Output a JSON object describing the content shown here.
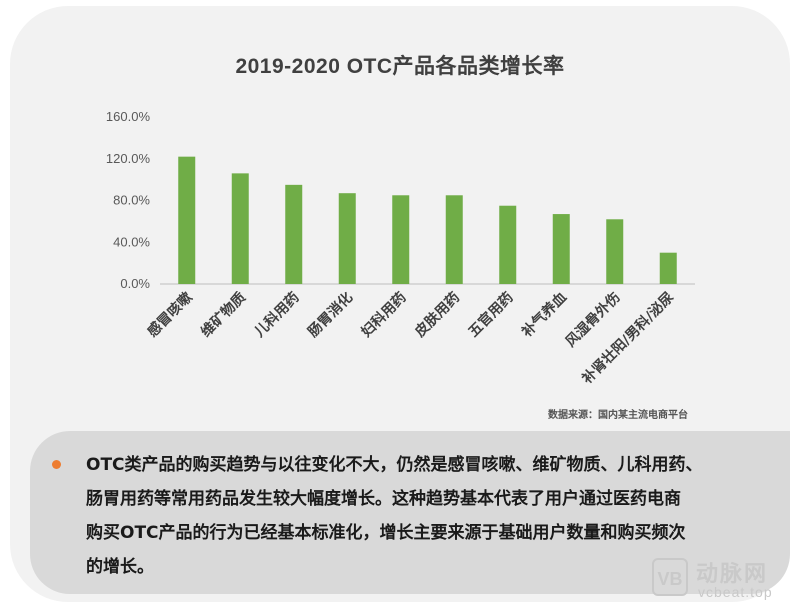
{
  "chart_data": {
    "type": "bar",
    "title": "2019-2020 OTC产品各品类增长率",
    "categories": [
      "感冒咳嗽",
      "维矿物质",
      "儿科用药",
      "肠胃消化",
      "妇科用药",
      "皮肤用药",
      "五官用药",
      "补气养血",
      "风湿骨外伤",
      "补肾壮阳/男科/泌尿"
    ],
    "values": [
      122,
      106,
      95,
      87,
      85,
      85,
      75,
      67,
      62,
      30
    ],
    "ylim": [
      0,
      160
    ],
    "yticks": [
      "0.0%",
      "40.0%",
      "80.0%",
      "120.0%",
      "160.0%"
    ],
    "ytick_values": [
      0,
      40,
      80,
      120,
      160
    ],
    "bar_color": "#70ad47",
    "grid": false,
    "source": "数据来源：国内某主流电商平台"
  },
  "note": {
    "bullet_color": "#ed7d31",
    "lines": [
      "OTC类产品的购买趋势与以往变化不大，仍然是感冒咳嗽、维矿物质、儿科用药、",
      "肠胃用药等常用药品发生较大幅度增长。这种趋势基本代表了用户通过医药电商",
      "购买OTC产品的行为已经基本标准化，增长主要来源于基础用户数量和购买频次",
      "的增长。"
    ]
  },
  "watermark": {
    "logo": "VB",
    "name": "动脉网",
    "url": "vcbeat.top"
  }
}
